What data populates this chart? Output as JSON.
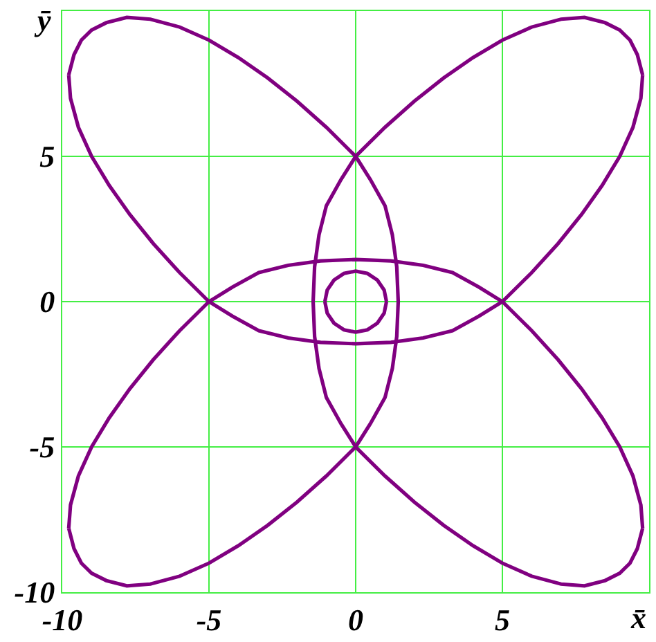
{
  "chart_data": {
    "type": "line",
    "xlabel": "x̄",
    "ylabel": "ȳ",
    "xlim": [
      -10,
      10
    ],
    "ylim": [
      -10,
      10
    ],
    "xticks": [
      -10,
      -5,
      0,
      5
    ],
    "yticks": [
      -10,
      -5,
      0,
      5
    ],
    "grid": true,
    "marker": "none",
    "line_style": "solid",
    "series": [
      {
        "color": "#800080",
        "x": [
          5,
          6,
          6.9,
          7.7,
          8.4,
          9.0,
          9.45,
          9.72,
          9.78,
          null,
          9.78,
          9.6,
          9.35,
          9.0,
          8.5,
          7.8,
          7,
          6,
          5,
          4,
          3,
          2,
          1,
          0,
          -0.5,
          -1.0,
          -1.25,
          -1.4,
          -1.45,
          null,
          -1.45,
          -1.4,
          -1.25,
          -1.0,
          -0.5,
          0,
          1,
          2,
          3,
          4,
          5,
          6,
          7,
          7.8,
          8.5,
          9.0,
          9.35,
          9.6,
          9.78,
          null,
          9.78,
          9.72,
          9.45,
          9.0,
          8.4,
          7.7,
          6.9,
          6,
          5,
          4.2,
          3.3,
          2.3,
          1.2,
          0,
          -1.2,
          -2.3,
          -3.3,
          -4.2,
          -5,
          -6,
          -6.9,
          -7.7,
          -8.4,
          -9.0,
          -9.45,
          -9.72,
          -9.78,
          null,
          -9.78,
          -9.6,
          -9.35,
          -9.0,
          -8.5,
          -7.8,
          -7,
          -6,
          -5,
          -4,
          -3,
          -2,
          -1,
          0,
          0.5,
          1.0,
          1.25,
          1.4,
          1.45,
          null,
          1.45,
          1.4,
          1.25,
          1.0,
          0.5,
          0,
          -1,
          -2,
          -3,
          -4,
          -5,
          -6,
          -7,
          -7.8,
          -8.5,
          -9.0,
          -9.35,
          -9.6,
          -9.78,
          null,
          -9.78,
          -9.72,
          -9.45,
          -9.0,
          -8.4,
          -7.7,
          -6.9,
          -6,
          -5,
          -4.2,
          -3.3,
          -2.3,
          -1.2,
          0,
          1.2,
          2.3,
          3.3,
          4.2,
          5,
          null,
          1.05,
          0.97,
          0.74,
          0.4,
          0,
          -0.4,
          -0.74,
          -0.97,
          -1.05,
          null,
          -1.05,
          -0.97,
          -0.74,
          -0.4,
          0,
          0.4,
          0.74,
          0.97,
          1.05
        ],
        "values": [
          0,
          1,
          2,
          3,
          4,
          5,
          6,
          7,
          7.8,
          null,
          7.8,
          8.5,
          9.0,
          9.35,
          9.6,
          9.78,
          9.72,
          9.45,
          9.0,
          8.4,
          7.7,
          6.9,
          6,
          5,
          4.2,
          3.3,
          2.3,
          1.2,
          0,
          null,
          0,
          -1.2,
          -2.3,
          -3.3,
          -4.2,
          -5,
          -6,
          -6.9,
          -7.7,
          -8.4,
          -9.0,
          -9.45,
          -9.72,
          -9.78,
          -9.6,
          -9.35,
          -9.0,
          -8.5,
          -7.8,
          null,
          -7.8,
          -7,
          -6,
          -5,
          -4,
          -3,
          -2,
          -1,
          0,
          0.5,
          1.0,
          1.25,
          1.4,
          1.45,
          1.4,
          1.25,
          1.0,
          0.5,
          0,
          -1,
          -2,
          -3,
          -4,
          -5,
          -6,
          -7,
          -7.8,
          null,
          -7.8,
          -8.5,
          -9.0,
          -9.35,
          -9.6,
          -9.78,
          -9.72,
          -9.45,
          -9.0,
          -8.4,
          -7.7,
          -6.9,
          -6,
          -5,
          -4.2,
          -3.3,
          -2.3,
          -1.2,
          0,
          null,
          0,
          1.2,
          2.3,
          3.3,
          4.2,
          5,
          6,
          6.9,
          7.7,
          8.4,
          9.0,
          9.45,
          9.72,
          9.78,
          9.6,
          9.35,
          9.0,
          8.5,
          7.8,
          null,
          7.8,
          7,
          6,
          5,
          4,
          3,
          2,
          1,
          0,
          -0.5,
          -1.0,
          -1.25,
          -1.4,
          -1.45,
          -1.4,
          -1.25,
          -1.0,
          -0.5,
          0,
          null,
          0,
          0.4,
          0.74,
          0.97,
          1.05,
          0.97,
          0.74,
          0.4,
          0,
          null,
          0,
          -0.4,
          -0.74,
          -0.97,
          -1.05,
          -0.97,
          -0.74,
          -0.4,
          0
        ]
      }
    ]
  }
}
